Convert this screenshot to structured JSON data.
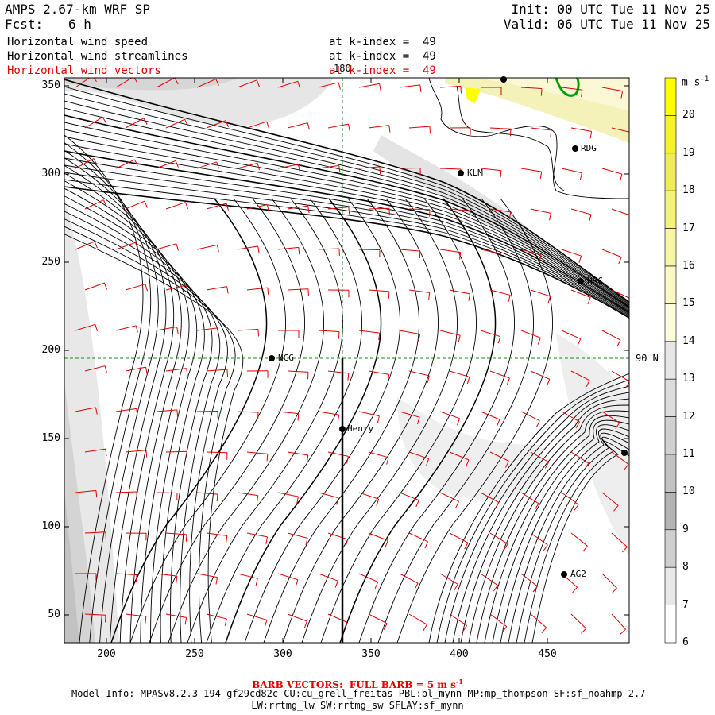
{
  "header": {
    "model": "AMPS 2.67-km WRF SP",
    "fcst_label": "Fcst:",
    "fcst_value": "6 h",
    "init": "Init: 00 UTC Tue 11 Nov 25",
    "valid": "Valid: 06 UTC Tue 11 Nov 25"
  },
  "fields": [
    {
      "name": "Horizontal wind speed",
      "level": "at k-index =  49"
    },
    {
      "name": "Horizontal wind streamlines",
      "level": "at k-index =  49"
    },
    {
      "name": "Horizontal wind vectors",
      "level": "at k-index =  49"
    }
  ],
  "map": {
    "x_ticks": [
      "200",
      "250",
      "300",
      "350",
      "400",
      "450"
    ],
    "y_ticks": [
      "350",
      "300",
      "250",
      "200",
      "150",
      "100",
      "50"
    ],
    "meridian_label": "180",
    "parallel_label": "90 N",
    "stations": [
      "RDG",
      "KLM",
      "HRC",
      "NCG",
      "Henry",
      "AG2"
    ]
  },
  "colorbar": {
    "unit": "m s",
    "unit_exp": "-1",
    "levels": [
      "20",
      "19",
      "18",
      "17",
      "16",
      "15",
      "14",
      "13",
      "12",
      "11",
      "10",
      "9",
      "8",
      "7",
      "6"
    ],
    "colors": [
      "#ffff00",
      "#f5f226",
      "#f0ec55",
      "#f4f27a",
      "#f7f6a4",
      "#faf9c6",
      "#fbfbdc",
      "#e6e6e6",
      "#dcdcdc",
      "#d0d0d0",
      "#c2c2c2",
      "#b3b3b3",
      "#cfcfcf",
      "#e8e8e8",
      "#ffffff"
    ]
  },
  "footer": {
    "barb_label": "BARB VECTORS:  FULL BARB = 5 m s",
    "barb_exp": "-1",
    "model_info": "Model Info: MPASv8.2.3-194-gf29cd82c CU:cu_grell_freitas PBL:bl_mynn MP:mp_thompson SF:sf_noahmp 2.7",
    "model_info2": "LW:rrtmg_lw SW:rrtmg_sw SFLAY:sf_mynn"
  }
}
